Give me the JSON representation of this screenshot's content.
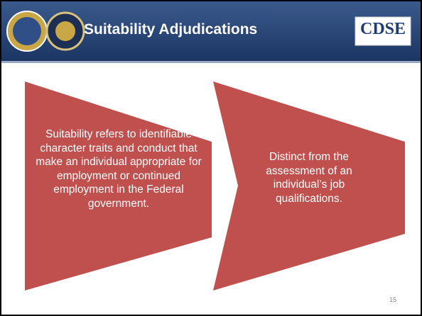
{
  "header": {
    "title": "Suitability Adjudications",
    "logo": "CDSE"
  },
  "boxes": [
    {
      "text": "Suitability refers to identifiable character traits and conduct that make an individual appropriate for employment or continued employment in the Federal government."
    },
    {
      "text": "Distinct from the assessment of an individual’s job qualifications."
    }
  ],
  "page_number": "15"
}
